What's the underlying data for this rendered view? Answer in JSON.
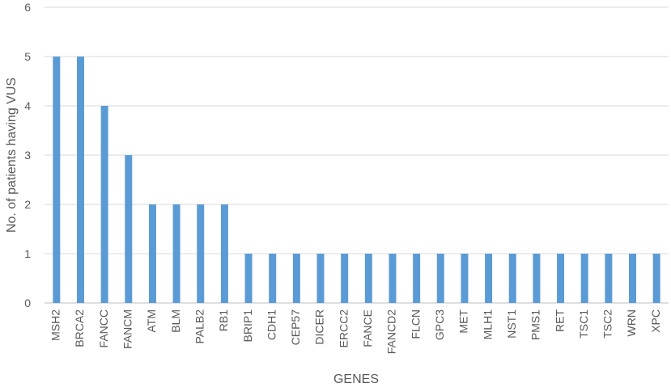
{
  "chart_data": {
    "type": "bar",
    "title": "",
    "xlabel": "GENES",
    "ylabel": "No. of patients having VUS",
    "ylim": [
      0,
      6
    ],
    "yticks": [
      0,
      1,
      2,
      3,
      4,
      5,
      6
    ],
    "grid": true,
    "legend": "none",
    "bar_color": "#5B9BD5",
    "categories": [
      "MSH2",
      "BRCA2",
      "FANCC",
      "FANCM",
      "ATM",
      "BLM",
      "PALB2",
      "RB1",
      "BRIP1",
      "CDH1",
      "CEP57",
      "DICER",
      "ERCC2",
      "FANCE",
      "FANCD2",
      "FLCN",
      "GPC3",
      "MET",
      "MLH1",
      "NST1",
      "PMS1",
      "RET",
      "TSC1",
      "TSC2",
      "WRN",
      "XPC"
    ],
    "values": [
      5,
      5,
      4,
      3,
      2,
      2,
      2,
      2,
      1,
      1,
      1,
      1,
      1,
      1,
      1,
      1,
      1,
      1,
      1,
      1,
      1,
      1,
      1,
      1,
      1,
      1
    ]
  }
}
